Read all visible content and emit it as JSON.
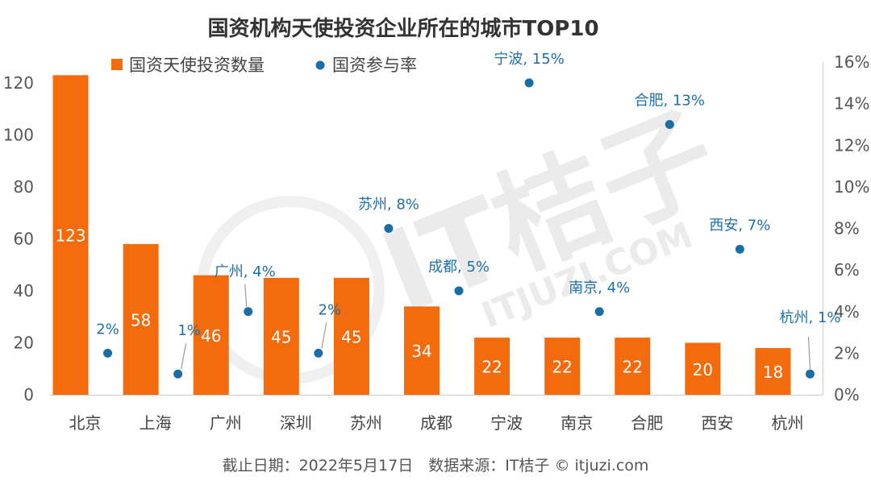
{
  "chart_data": {
    "type": "bar",
    "title": "国资机构天使投资企业所在的城市TOP10",
    "categories": [
      "北京",
      "上海",
      "广州",
      "深圳",
      "苏州",
      "成都",
      "宁波",
      "南京",
      "合肥",
      "西安",
      "杭州"
    ],
    "series": [
      {
        "name": "国资天使投资数量",
        "type": "bar",
        "axis": "left",
        "values": [
          123,
          58,
          46,
          45,
          45,
          34,
          22,
          22,
          22,
          20,
          18
        ],
        "color": "#f46b0d"
      },
      {
        "name": "国资参与率",
        "type": "scatter",
        "axis": "right",
        "values": [
          2,
          1,
          4,
          2,
          8,
          5,
          15,
          4,
          13,
          7,
          1
        ],
        "labels": [
          "2%",
          "1%",
          "广州, 4%",
          "2%",
          "苏州, 8%",
          "成都, 5%",
          "宁波, 15%",
          "南京, 4%",
          "合肥, 13%",
          "西安, 7%",
          "杭州, 1%"
        ],
        "color": "#1a6ea5"
      }
    ],
    "ylim_left": [
      0,
      130
    ],
    "yticks_left": [
      "0",
      "20",
      "40",
      "60",
      "80",
      "100",
      "120"
    ],
    "ylim_right": [
      0,
      16
    ],
    "yticks_right": [
      "0%",
      "2%",
      "4%",
      "6%",
      "8%",
      "10%",
      "12%",
      "14%",
      "16%"
    ],
    "legend_position": "top",
    "grid": false
  },
  "footer": "截止日期：2022年5月17日　数据来源：IT桔子 © itjuzi.com",
  "watermark": {
    "brand": "IT桔子",
    "url": "ITJUZI.COM"
  }
}
